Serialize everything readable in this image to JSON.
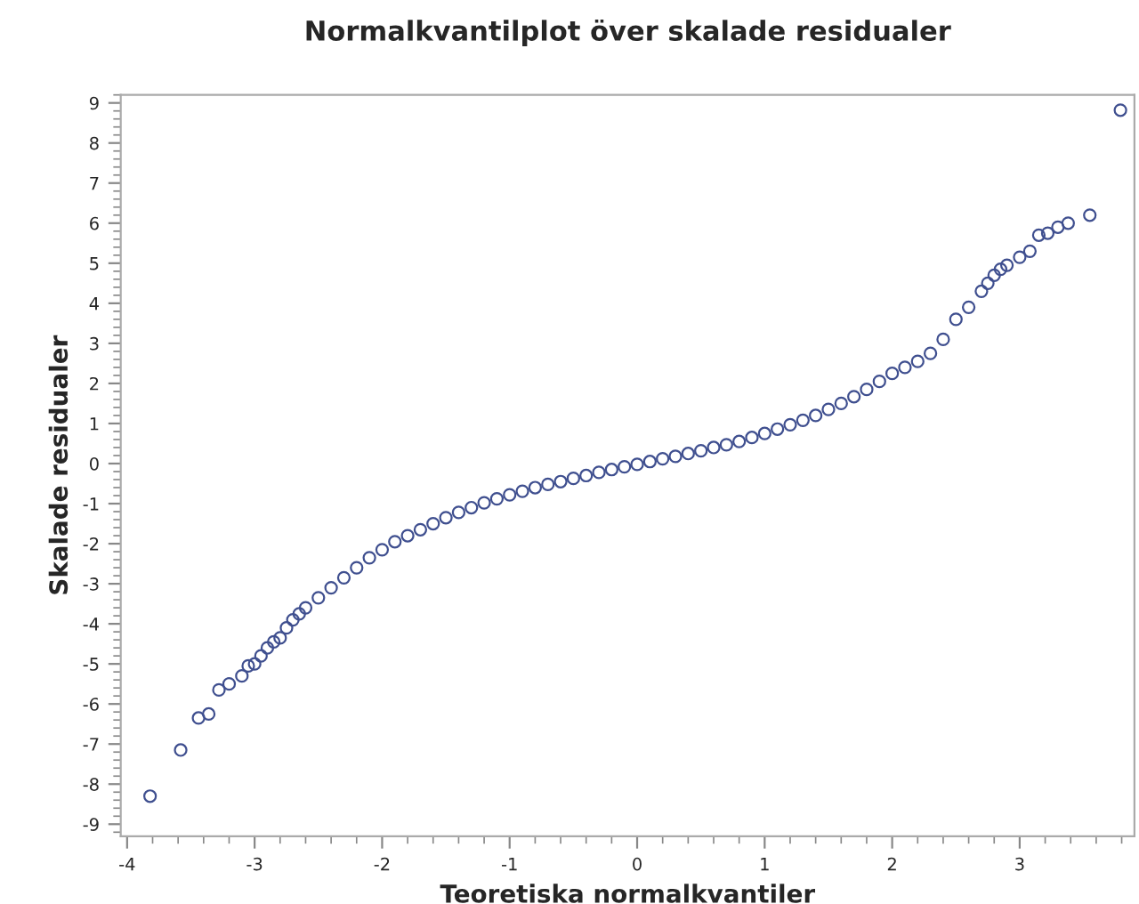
{
  "chart_data": {
    "type": "scatter",
    "title": "Normalkvantilplot över skalade residualer",
    "xlabel": "Teoretiska normalkvantiler",
    "ylabel": "Skalade residualer",
    "xlim": [
      -4.05,
      3.9
    ],
    "ylim": [
      -9.3,
      9.2
    ],
    "xticks": [
      -4,
      -3,
      -2,
      -1,
      0,
      1,
      2,
      3
    ],
    "yticks": [
      {
        "value": -9,
        "label": "-9"
      },
      {
        "value": -8,
        "label": "-8"
      },
      {
        "value": -7,
        "label": "-7"
      },
      {
        "value": -6,
        "label": "-6"
      },
      {
        "value": -5,
        "label": "-5"
      },
      {
        "value": -4,
        "label": "-4"
      },
      {
        "value": -3,
        "label": "-3"
      },
      {
        "value": -2,
        "label": "-2"
      },
      {
        "value": -1,
        "label": "-1"
      },
      0,
      1,
      2,
      3,
      4,
      5,
      6,
      7,
      8,
      9
    ],
    "marker": "circle",
    "grid": false,
    "legend": false,
    "series": [
      {
        "color": "#3f4f8f",
        "x": [
          -3.82,
          -3.58,
          -3.44,
          -3.36,
          -3.28,
          -3.2,
          -3.1,
          -3.05,
          -3.0,
          -2.95,
          -2.9,
          -2.85,
          -2.8,
          -2.75,
          -2.7,
          -2.65,
          -2.6,
          -2.5,
          -2.4,
          -2.3,
          -2.2,
          -2.1,
          -2.0,
          -1.9,
          -1.8,
          -1.7,
          -1.6,
          -1.5,
          -1.4,
          -1.3,
          -1.2,
          -1.1,
          -1.0,
          -0.9,
          -0.8,
          -0.7,
          -0.6,
          -0.5,
          -0.4,
          -0.3,
          -0.2,
          -0.1,
          0.0,
          0.1,
          0.2,
          0.3,
          0.4,
          0.5,
          0.6,
          0.7,
          0.8,
          0.9,
          1.0,
          1.1,
          1.2,
          1.3,
          1.4,
          1.5,
          1.6,
          1.7,
          1.8,
          1.9,
          2.0,
          2.1,
          2.2,
          2.3,
          2.4,
          2.5,
          2.6,
          2.7,
          2.75,
          2.8,
          2.85,
          2.9,
          3.0,
          3.08,
          3.15,
          3.22,
          3.3,
          3.38,
          3.55,
          3.79
        ],
        "values": [
          -8.3,
          -7.15,
          -6.35,
          -6.25,
          -5.65,
          -5.5,
          -5.3,
          -5.05,
          -5.0,
          -4.8,
          -4.6,
          -4.45,
          -4.35,
          -4.1,
          -3.9,
          -3.75,
          -3.6,
          -3.35,
          -3.1,
          -2.85,
          -2.6,
          -2.35,
          -2.15,
          -1.95,
          -1.8,
          -1.65,
          -1.5,
          -1.35,
          -1.22,
          -1.1,
          -0.98,
          -0.88,
          -0.78,
          -0.69,
          -0.6,
          -0.52,
          -0.45,
          -0.37,
          -0.3,
          -0.22,
          -0.15,
          -0.08,
          -0.02,
          0.05,
          0.12,
          0.18,
          0.25,
          0.32,
          0.4,
          0.47,
          0.55,
          0.65,
          0.75,
          0.86,
          0.97,
          1.08,
          1.2,
          1.35,
          1.5,
          1.67,
          1.85,
          2.05,
          2.25,
          2.4,
          2.55,
          2.75,
          3.1,
          3.6,
          3.9,
          4.3,
          4.5,
          4.7,
          4.85,
          4.95,
          5.15,
          5.3,
          5.7,
          5.75,
          5.9,
          6.0,
          6.2,
          8.82
        ]
      }
    ]
  }
}
